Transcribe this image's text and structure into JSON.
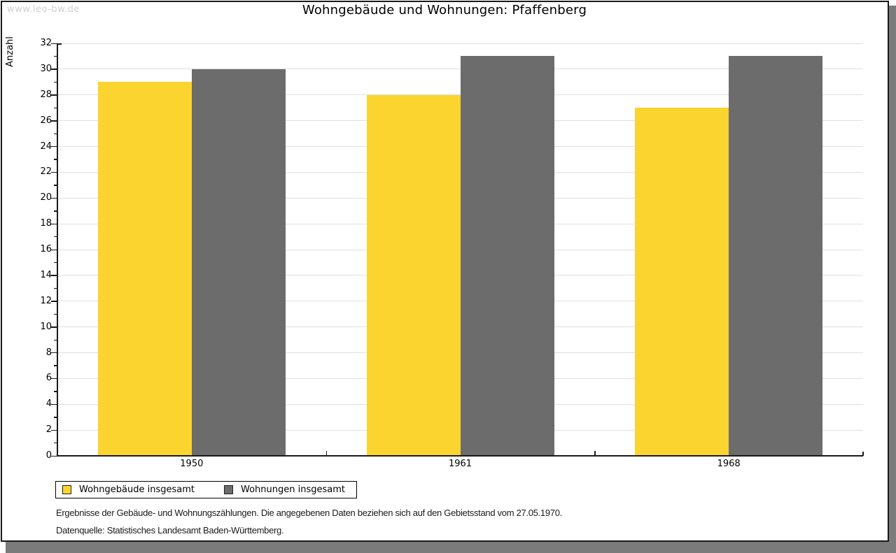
{
  "watermark": "www.leo-bw.de",
  "chart_data": {
    "type": "bar",
    "title": "Wohngebäude und Wohnungen: Pfaffenberg",
    "ylabel": "Anzahl",
    "xlabel": "",
    "categories": [
      "1950",
      "1961",
      "1968"
    ],
    "series": [
      {
        "name": "Wohngebäude insgesamt",
        "color": "#FCD42F",
        "values": [
          29,
          28,
          27
        ]
      },
      {
        "name": "Wohnungen insgesamt",
        "color": "#6C6C6C",
        "values": [
          30,
          31,
          31
        ]
      }
    ],
    "ylim": [
      0,
      32
    ],
    "y_ticks": [
      0,
      2,
      4,
      6,
      8,
      10,
      12,
      14,
      16,
      18,
      20,
      22,
      24,
      26,
      28,
      30,
      32
    ],
    "y_minor_tick_step": 1,
    "grid": true,
    "legend_position": "bottom-left",
    "grid_color": "#e0e0e0",
    "axis_color": "#1a1a1a"
  },
  "footnotes": [
    "Ergebnisse der Gebäude- und Wohnungszählungen. Die angegebenen Daten beziehen sich auf den Gebietsstand vom 27.05.1970.",
    "Datenquelle: Statistisches Landesamt Baden-Württemberg."
  ]
}
